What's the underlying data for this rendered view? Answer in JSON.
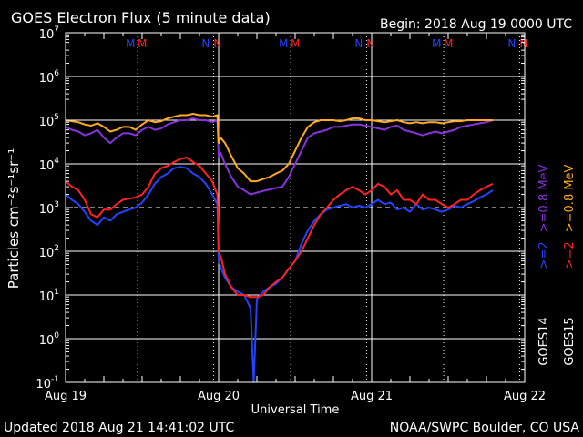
{
  "chart_data": {
    "type": "line",
    "title": "GOES Electron Flux (5 minute data)",
    "begin_label": "Begin: 2018 Aug 19 0000 UTC",
    "xlabel": "Universal Time",
    "ylabel": "Particles cm⁻²s⁻¹sr⁻¹",
    "x_units": "hours since 2018 Aug 19 0000 UTC",
    "xlim": [
      0,
      72
    ],
    "x_ticks": [
      {
        "x": 0,
        "label": "Aug 19"
      },
      {
        "x": 24,
        "label": "Aug 20"
      },
      {
        "x": 48,
        "label": "Aug 21"
      },
      {
        "x": 72,
        "label": "Aug 22"
      }
    ],
    "y_scale": "log",
    "ylim_exp": [
      -1,
      7
    ],
    "y_tick_base": "10",
    "y_tick_exponents": [
      "-1",
      "0",
      "1",
      "2",
      "3",
      "4",
      "5",
      "6",
      "7"
    ],
    "alert_threshold": 1000,
    "eclipse_markers": [
      {
        "x": 11.3,
        "labels": [
          "M",
          "M"
        ]
      },
      {
        "x": 23.2,
        "labels": [
          "N",
          "N"
        ]
      },
      {
        "x": 35.3,
        "labels": [
          "M",
          "M"
        ]
      },
      {
        "x": 47.2,
        "labels": [
          "N",
          "N"
        ]
      },
      {
        "x": 59.3,
        "labels": [
          "M",
          "M"
        ]
      },
      {
        "x": 71.2,
        "labels": [
          "N",
          "N"
        ]
      }
    ],
    "legend": {
      "energies": [
        ">=0.8 MeV",
        ">=2"
      ],
      "satellites": [
        "GOES14",
        "GOES15"
      ]
    },
    "series": [
      {
        "name": "GOES14 >=0.8 MeV",
        "color": "#8833dd",
        "x": [
          0,
          1,
          2,
          3,
          4,
          5,
          6,
          7,
          8,
          9,
          10,
          11,
          12,
          13,
          14,
          15,
          16,
          17,
          18,
          19,
          20,
          21,
          22,
          23,
          23.8,
          24,
          24.3,
          25,
          26,
          27,
          28,
          29,
          30,
          31,
          32,
          33,
          34,
          35,
          36,
          37,
          38,
          39,
          40,
          41,
          42,
          43,
          44,
          45,
          46,
          47,
          48,
          49,
          50,
          51,
          52,
          53,
          54,
          55,
          56,
          57,
          58,
          59,
          60,
          61,
          62,
          63,
          64,
          65,
          66,
          67
        ],
        "y": [
          70000,
          60000,
          55000,
          45000,
          50000,
          60000,
          40000,
          30000,
          40000,
          50000,
          50000,
          45000,
          60000,
          70000,
          60000,
          65000,
          80000,
          90000,
          100000,
          100000,
          110000,
          100000,
          100000,
          90000,
          100000,
          15000,
          18000,
          10000,
          5000,
          3000,
          2500,
          2000,
          2200,
          2400,
          2600,
          2800,
          3000,
          5000,
          10000,
          20000,
          40000,
          50000,
          55000,
          60000,
          70000,
          70000,
          75000,
          80000,
          80000,
          75000,
          70000,
          65000,
          60000,
          70000,
          75000,
          60000,
          55000,
          50000,
          45000,
          50000,
          55000,
          50000,
          55000,
          60000,
          70000,
          75000,
          80000,
          85000,
          90000,
          100000
        ]
      },
      {
        "name": "GOES15 >=0.8 MeV",
        "color": "#ffaa22",
        "x": [
          0,
          1,
          2,
          3,
          4,
          5,
          6,
          7,
          8,
          9,
          10,
          11,
          12,
          13,
          14,
          15,
          16,
          17,
          18,
          19,
          20,
          21,
          22,
          23,
          23.8,
          24,
          24.3,
          25,
          26,
          27,
          28,
          29,
          30,
          31,
          32,
          33,
          34,
          35,
          36,
          37,
          38,
          39,
          40,
          41,
          42,
          43,
          44,
          45,
          46,
          47,
          48,
          49,
          50,
          51,
          52,
          53,
          54,
          55,
          56,
          57,
          58,
          59,
          60,
          61,
          62,
          63,
          64,
          65,
          66,
          67
        ],
        "y": [
          100000,
          95000,
          90000,
          80000,
          75000,
          85000,
          70000,
          55000,
          60000,
          70000,
          70000,
          60000,
          80000,
          100000,
          90000,
          95000,
          110000,
          120000,
          130000,
          130000,
          140000,
          130000,
          130000,
          120000,
          130000,
          30000,
          40000,
          30000,
          15000,
          8000,
          6000,
          4000,
          4000,
          4500,
          5000,
          6000,
          7000,
          10000,
          20000,
          40000,
          70000,
          90000,
          100000,
          100000,
          100000,
          95000,
          100000,
          110000,
          110000,
          100000,
          100000,
          95000,
          90000,
          95000,
          100000,
          90000,
          85000,
          90000,
          85000,
          90000,
          90000,
          85000,
          90000,
          95000,
          95000,
          100000,
          100000,
          100000,
          100000,
          100000
        ]
      },
      {
        "name": "GOES14 >=2 MeV",
        "color": "#2244ff",
        "x": [
          0,
          1,
          2,
          3,
          4,
          5,
          6,
          7,
          8,
          9,
          10,
          11,
          12,
          13,
          14,
          15,
          16,
          17,
          18,
          19,
          20,
          21,
          22,
          23,
          23.8,
          24,
          24.4,
          25,
          26,
          27,
          28,
          29,
          29.5,
          30,
          31,
          32,
          33,
          34,
          35,
          36,
          37,
          38,
          39,
          40,
          41,
          42,
          43,
          44,
          45,
          46,
          47,
          48,
          49,
          50,
          51,
          52,
          53,
          54,
          55,
          56,
          57,
          58,
          59,
          60,
          61,
          62,
          63,
          64,
          65,
          66,
          67
        ],
        "y": [
          2000,
          1500,
          1200,
          800,
          500,
          400,
          600,
          500,
          700,
          800,
          900,
          1000,
          1300,
          2000,
          3500,
          5000,
          6000,
          8000,
          8500,
          8000,
          6000,
          5000,
          3500,
          2000,
          1200,
          60,
          40,
          25,
          15,
          12,
          10,
          5,
          0.1,
          8,
          12,
          15,
          18,
          25,
          40,
          60,
          150,
          300,
          500,
          700,
          900,
          1000,
          1100,
          1200,
          1000,
          1100,
          1000,
          1200,
          1500,
          1200,
          1300,
          900,
          1000,
          800,
          1200,
          900,
          1000,
          900,
          800,
          900,
          1100,
          1000,
          1200,
          1400,
          1700,
          2000,
          2500
        ]
      },
      {
        "name": "GOES15 >=2 MeV",
        "color": "#ff2222",
        "x": [
          0,
          1,
          2,
          3,
          4,
          5,
          6,
          7,
          8,
          9,
          10,
          11,
          12,
          13,
          14,
          15,
          16,
          17,
          18,
          19,
          20,
          21,
          22,
          23,
          23.8,
          24,
          24.4,
          25,
          26,
          27,
          28,
          29,
          30,
          31,
          32,
          33,
          34,
          35,
          36,
          37,
          38,
          39,
          40,
          41,
          42,
          43,
          44,
          45,
          46,
          47,
          48,
          49,
          50,
          51,
          52,
          53,
          54,
          55,
          56,
          57,
          58,
          59,
          60,
          61,
          62,
          63,
          64,
          65,
          66,
          67
        ],
        "y": [
          4000,
          3000,
          2500,
          1500,
          700,
          600,
          900,
          900,
          1200,
          1500,
          1600,
          1700,
          2000,
          3000,
          6000,
          8000,
          9000,
          11000,
          13000,
          14000,
          11000,
          9000,
          6000,
          4000,
          2000,
          100,
          70,
          30,
          15,
          10,
          10,
          9,
          9,
          10,
          15,
          20,
          25,
          40,
          60,
          100,
          200,
          400,
          700,
          1000,
          1500,
          2000,
          2500,
          3000,
          2500,
          2000,
          2500,
          3500,
          3000,
          2000,
          2500,
          1500,
          1500,
          1200,
          2000,
          1500,
          1500,
          1200,
          1000,
          1200,
          1500,
          1500,
          2000,
          2500,
          3000,
          3500
        ]
      }
    ]
  },
  "footer": {
    "updated": "Updated 2018 Aug 21 14:41:02 UTC",
    "credit": "NOAA/SWPC Boulder, CO USA"
  }
}
